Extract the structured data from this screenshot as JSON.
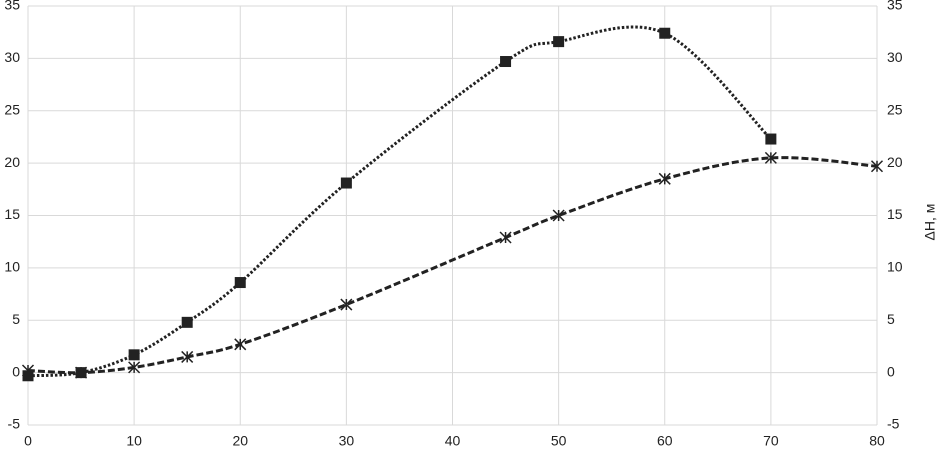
{
  "chart_data": {
    "type": "line",
    "y2label": "ΔH, м",
    "xlim": [
      0,
      80
    ],
    "xticks": [
      0,
      10,
      20,
      30,
      40,
      50,
      60,
      70,
      80
    ],
    "ylim": [
      -5,
      35
    ],
    "yticks": [
      -5,
      0,
      5,
      10,
      15,
      20,
      25,
      30,
      35
    ],
    "y2lim": [
      -5,
      35
    ],
    "y2ticks": [
      -5,
      0,
      5,
      10,
      15,
      20,
      25,
      30,
      35
    ],
    "grid": true,
    "smooth": true,
    "series": [
      {
        "color": "#222222",
        "dash": "dotted",
        "marker": "square",
        "x": [
          0,
          5,
          10,
          15,
          20,
          30,
          45,
          50,
          60,
          70
        ],
        "values": [
          -0.3,
          0,
          1.7,
          4.8,
          8.6,
          18.1,
          29.7,
          31.6,
          32.4,
          22.3
        ]
      },
      {
        "color": "#222222",
        "dash": "dashed",
        "marker": "asterisk",
        "x": [
          0,
          5,
          10,
          15,
          20,
          30,
          45,
          50,
          60,
          70,
          80
        ],
        "values": [
          0.2,
          0,
          0.5,
          1.5,
          2.7,
          6.5,
          12.9,
          15.0,
          18.5,
          20.5,
          19.7
        ]
      }
    ]
  }
}
